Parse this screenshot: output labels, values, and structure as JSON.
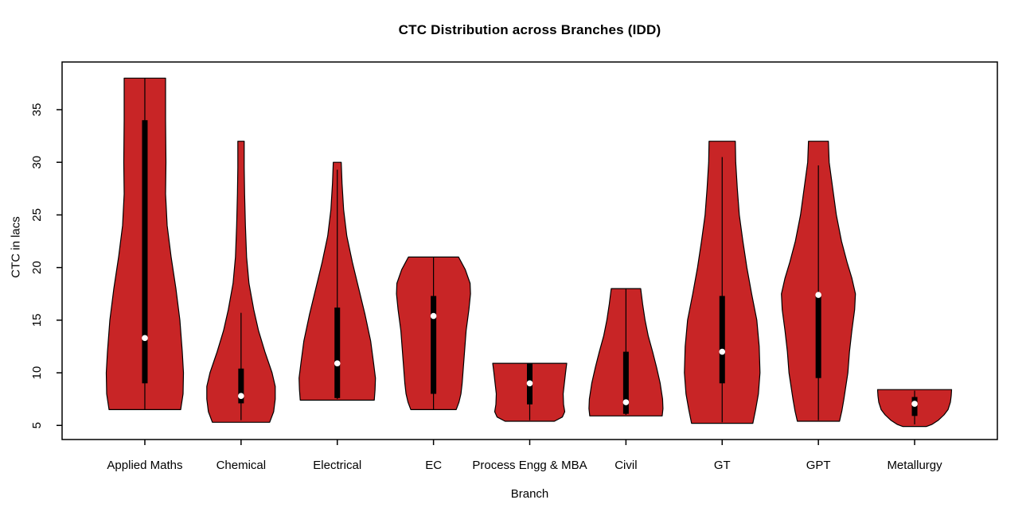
{
  "figure": {
    "title": "CTC Distribution across Branches (IDD)",
    "x_axis_title": "Branch",
    "y_axis_title": "CTC in lacs"
  },
  "colors": {
    "background": "#FFFFFF",
    "violin_fill": "#C82526",
    "violin_stroke": "#000000",
    "whisker": "#000000",
    "box": "#000000",
    "median_dot": "#FFFFFF",
    "axis": "#000000",
    "text": "#000000"
  },
  "chart_data": {
    "type": "violin",
    "title": "CTC Distribution across Branches (IDD)",
    "xlabel": "Branch",
    "ylabel": "CTC in lacs",
    "ylim": [
      3.66,
      39.53
    ],
    "xlim": [
      0.14,
      9.86
    ],
    "y_ticks": [
      5,
      10,
      15,
      20,
      25,
      30,
      35
    ],
    "grid": false,
    "legend": "none",
    "categories": [
      "Applied Maths",
      "Chemical",
      "Electrical",
      "EC",
      "Process Engg & MBA",
      "Civil",
      "GT",
      "GPT",
      "Metallurgy"
    ],
    "series": [
      {
        "name": "Applied Maths",
        "position": 1,
        "min": 6.5,
        "q1": 9.0,
        "median": 13.3,
        "q3": 34.0,
        "max": 38.0,
        "whisker_low": 6.5,
        "whisker_high": 38.0,
        "profile": [
          [
            38.0,
            26
          ],
          [
            34.0,
            26
          ],
          [
            30.0,
            26.5
          ],
          [
            27.0,
            26
          ],
          [
            24.0,
            28
          ],
          [
            21.0,
            33
          ],
          [
            18.0,
            39
          ],
          [
            15.0,
            44
          ],
          [
            12.0,
            47
          ],
          [
            10.0,
            48.5
          ],
          [
            8.0,
            48
          ],
          [
            6.5,
            45
          ]
        ]
      },
      {
        "name": "Chemical",
        "position": 2,
        "min": 5.3,
        "q1": 7.1,
        "median": 7.8,
        "q3": 10.4,
        "max": 32.0,
        "whisker_low": 5.5,
        "whisker_high": 15.7,
        "profile": [
          [
            32.0,
            4
          ],
          [
            29.5,
            4
          ],
          [
            27.0,
            4.5
          ],
          [
            24.0,
            5.5
          ],
          [
            21.0,
            7
          ],
          [
            18.5,
            10
          ],
          [
            16.0,
            16
          ],
          [
            14.0,
            22
          ],
          [
            12.0,
            30
          ],
          [
            10.0,
            39
          ],
          [
            8.7,
            43
          ],
          [
            7.5,
            43
          ],
          [
            6.3,
            41
          ],
          [
            5.3,
            36
          ]
        ]
      },
      {
        "name": "Electrical",
        "position": 3,
        "min": 7.4,
        "q1": 7.6,
        "median": 10.9,
        "q3": 16.2,
        "max": 30.0,
        "whisker_low": 7.5,
        "whisker_high": 29.3,
        "profile": [
          [
            30.0,
            5
          ],
          [
            28.0,
            6
          ],
          [
            25.5,
            8
          ],
          [
            23.0,
            12
          ],
          [
            20.5,
            19
          ],
          [
            18.0,
            27
          ],
          [
            15.5,
            35
          ],
          [
            13.0,
            42
          ],
          [
            11.0,
            45.5
          ],
          [
            9.5,
            48
          ],
          [
            8.4,
            47.5
          ],
          [
            7.4,
            46.5
          ]
        ]
      },
      {
        "name": "EC",
        "position": 4,
        "min": 6.5,
        "q1": 8.0,
        "median": 15.4,
        "q3": 17.3,
        "max": 21.0,
        "whisker_low": 6.5,
        "whisker_high": 21.0,
        "profile": [
          [
            21.0,
            31.5
          ],
          [
            19.8,
            40
          ],
          [
            18.5,
            46
          ],
          [
            17.5,
            46.5
          ],
          [
            16.0,
            44.5
          ],
          [
            14.0,
            41
          ],
          [
            12.0,
            39
          ],
          [
            10.5,
            37.5
          ],
          [
            9.0,
            36
          ],
          [
            8.0,
            34.5
          ],
          [
            7.2,
            32
          ],
          [
            6.5,
            28.5
          ]
        ]
      },
      {
        "name": "Process Engg & MBA",
        "position": 5,
        "min": 5.4,
        "q1": 7.0,
        "median": 9.0,
        "q3": 10.9,
        "max": 10.9,
        "whisker_low": 5.5,
        "whisker_high": 10.9,
        "profile": [
          [
            10.9,
            46.5
          ],
          [
            10.0,
            45
          ],
          [
            9.0,
            43.5
          ],
          [
            8.0,
            42
          ],
          [
            7.0,
            42.5
          ],
          [
            6.3,
            44
          ],
          [
            5.8,
            41
          ],
          [
            5.4,
            31
          ]
        ]
      },
      {
        "name": "Civil",
        "position": 6,
        "min": 5.9,
        "q1": 6.1,
        "median": 7.2,
        "q3": 12.0,
        "max": 18.0,
        "whisker_low": 6.0,
        "whisker_high": 18.0,
        "profile": [
          [
            18.0,
            18.5
          ],
          [
            16.5,
            21
          ],
          [
            15.0,
            24
          ],
          [
            13.5,
            28
          ],
          [
            12.0,
            33.5
          ],
          [
            10.5,
            38.5
          ],
          [
            9.0,
            43
          ],
          [
            7.5,
            46
          ],
          [
            6.6,
            46.5
          ],
          [
            5.9,
            45.5
          ]
        ]
      },
      {
        "name": "GT",
        "position": 7,
        "min": 5.2,
        "q1": 9.0,
        "median": 12.0,
        "q3": 17.3,
        "max": 32.0,
        "whisker_low": 5.3,
        "whisker_high": 30.5,
        "profile": [
          [
            32.0,
            16.5
          ],
          [
            30.0,
            17
          ],
          [
            27.5,
            19
          ],
          [
            25.0,
            21.5
          ],
          [
            22.5,
            26
          ],
          [
            20.0,
            31
          ],
          [
            17.5,
            37
          ],
          [
            15.0,
            43.5
          ],
          [
            12.5,
            46.5
          ],
          [
            10.0,
            47.5
          ],
          [
            8.0,
            45.5
          ],
          [
            6.5,
            42
          ],
          [
            5.2,
            38.5
          ]
        ]
      },
      {
        "name": "GPT",
        "position": 8,
        "min": 5.4,
        "q1": 9.5,
        "median": 17.4,
        "q3": 17.5,
        "max": 32.0,
        "whisker_low": 5.5,
        "whisker_high": 29.7,
        "profile": [
          [
            32.0,
            12.5
          ],
          [
            30.0,
            13.5
          ],
          [
            27.5,
            18
          ],
          [
            25.0,
            22.5
          ],
          [
            22.5,
            29
          ],
          [
            20.5,
            36
          ],
          [
            19.0,
            42
          ],
          [
            17.5,
            46.5
          ],
          [
            16.0,
            45.5
          ],
          [
            14.0,
            42
          ],
          [
            12.0,
            39
          ],
          [
            10.0,
            37
          ],
          [
            8.5,
            34
          ],
          [
            7.5,
            32
          ],
          [
            6.4,
            29.5
          ],
          [
            5.4,
            26.5
          ]
        ]
      },
      {
        "name": "Metallurgy",
        "position": 9,
        "min": 4.9,
        "q1": 5.9,
        "median": 7.05,
        "q3": 7.7,
        "max": 8.4,
        "whisker_low": 5.1,
        "whisker_high": 8.3,
        "profile": [
          [
            8.4,
            46.5
          ],
          [
            7.8,
            46
          ],
          [
            7.2,
            45
          ],
          [
            6.5,
            42
          ],
          [
            6.0,
            37
          ],
          [
            5.5,
            30
          ],
          [
            5.1,
            22
          ],
          [
            4.9,
            15
          ]
        ]
      }
    ]
  }
}
